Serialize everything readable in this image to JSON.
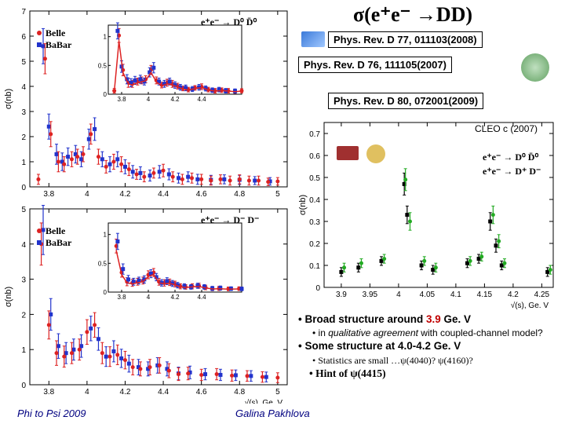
{
  "title": "σ(e⁺e⁻ →DD)",
  "refs": {
    "r1": "Phys. Rev. D 77, 011103(2008)",
    "r2": "Phys. Rev. D 76, 111105(2007)",
    "r3": "Phys. Rev. D 80, 072001(2009)"
  },
  "footer": {
    "left": "Phi to Psi 2009",
    "center": "Galina Pakhlova"
  },
  "bullets": {
    "l1a": "• Broad structure around ",
    "l1b": "3.9",
    "l1c": " Ge. V",
    "l2a": "• in ",
    "l2b": "qualitative agreement",
    "l2c": " with coupled-channel model?",
    "l3": "• Some structure at 4.0-4.2 Ge. V",
    "l4": "• Statistics are small …ψ(4040)? ψ(4160)?",
    "l5": "• Hint of ψ(4415)"
  },
  "chart_main_top": {
    "type": "scatter-errorbar",
    "xlim": [
      3.7,
      5.05
    ],
    "ylim": [
      0,
      7
    ],
    "yticks": [
      0,
      1,
      2,
      3,
      4,
      5,
      6,
      7
    ],
    "xticks": [
      3.8,
      4,
      4.2,
      4.4,
      4.6,
      4.8,
      5
    ],
    "ylabel": "σ(nb)",
    "xlabel": "",
    "legend": [
      "Belle",
      "BaBar"
    ],
    "reaction": "e⁺e⁻ → D⁰ D̄⁰",
    "series_red": {
      "color": "#dd2222",
      "points": [
        [
          3.745,
          0.3,
          0.2
        ],
        [
          3.78,
          5.1,
          0.6
        ],
        [
          3.81,
          2.1,
          0.5
        ],
        [
          3.85,
          1.0,
          0.4
        ],
        [
          3.88,
          0.9,
          0.3
        ],
        [
          3.92,
          1.1,
          0.3
        ],
        [
          3.95,
          1.2,
          0.3
        ],
        [
          3.98,
          1.3,
          0.3
        ],
        [
          4.02,
          2.1,
          0.4
        ],
        [
          4.06,
          1.2,
          0.3
        ],
        [
          4.1,
          0.8,
          0.25
        ],
        [
          4.14,
          1.0,
          0.3
        ],
        [
          4.18,
          0.9,
          0.3
        ],
        [
          4.22,
          0.7,
          0.25
        ],
        [
          4.26,
          0.5,
          0.2
        ],
        [
          4.3,
          0.4,
          0.2
        ],
        [
          4.35,
          0.55,
          0.2
        ],
        [
          4.4,
          0.65,
          0.25
        ],
        [
          4.45,
          0.4,
          0.2
        ],
        [
          4.5,
          0.3,
          0.2
        ],
        [
          4.55,
          0.35,
          0.2
        ],
        [
          4.6,
          0.3,
          0.2
        ],
        [
          4.65,
          0.25,
          0.18
        ],
        [
          4.7,
          0.3,
          0.18
        ],
        [
          4.75,
          0.25,
          0.18
        ],
        [
          4.8,
          0.3,
          0.18
        ],
        [
          4.85,
          0.25,
          0.18
        ],
        [
          4.9,
          0.25,
          0.18
        ],
        [
          4.95,
          0.2,
          0.15
        ],
        [
          5.0,
          0.22,
          0.15
        ]
      ]
    },
    "series_blue": {
      "color": "#2233cc",
      "points": [
        [
          3.77,
          5.6,
          0.7
        ],
        [
          3.8,
          2.4,
          0.5
        ],
        [
          3.84,
          1.3,
          0.4
        ],
        [
          3.87,
          1.0,
          0.35
        ],
        [
          3.9,
          1.2,
          0.35
        ],
        [
          3.94,
          1.3,
          0.35
        ],
        [
          3.97,
          1.1,
          0.3
        ],
        [
          4.01,
          1.9,
          0.4
        ],
        [
          4.04,
          2.3,
          0.45
        ],
        [
          4.08,
          1.1,
          0.3
        ],
        [
          4.12,
          0.9,
          0.3
        ],
        [
          4.16,
          1.1,
          0.3
        ],
        [
          4.2,
          0.8,
          0.28
        ],
        [
          4.24,
          0.6,
          0.25
        ],
        [
          4.28,
          0.55,
          0.25
        ],
        [
          4.33,
          0.45,
          0.22
        ],
        [
          4.38,
          0.6,
          0.25
        ],
        [
          4.43,
          0.5,
          0.22
        ],
        [
          4.48,
          0.35,
          0.2
        ],
        [
          4.53,
          0.4,
          0.2
        ],
        [
          4.58,
          0.3,
          0.2
        ],
        [
          4.65,
          0.28,
          0.18
        ],
        [
          4.72,
          0.3,
          0.18
        ],
        [
          4.8,
          0.28,
          0.18
        ],
        [
          4.88,
          0.25,
          0.16
        ],
        [
          4.96,
          0.22,
          0.15
        ]
      ]
    },
    "inset": {
      "xlim": [
        3.7,
        4.7
      ],
      "ylim": [
        0,
        1.2
      ],
      "yticks": [
        0,
        0.5,
        1
      ],
      "xticks": [
        3.8,
        4,
        4.2,
        4.4
      ],
      "curve_color": "#dd2222"
    }
  },
  "chart_main_bot": {
    "type": "scatter-errorbar",
    "xlim": [
      3.7,
      5.05
    ],
    "ylim": [
      0,
      5
    ],
    "yticks": [
      0,
      1,
      2,
      3,
      4,
      5
    ],
    "xticks": [
      3.8,
      4,
      4.2,
      4.4,
      4.6,
      4.8,
      5
    ],
    "ylabel": "σ(nb)",
    "xlabel": "√(s), Ge. V",
    "legend": [
      "Belle",
      "BaBar"
    ],
    "reaction": "e⁺e⁻ → D⁻ D⁻",
    "series_red": {
      "color": "#dd2222",
      "points": [
        [
          3.76,
          4.0,
          0.6
        ],
        [
          3.8,
          1.7,
          0.4
        ],
        [
          3.84,
          0.9,
          0.35
        ],
        [
          3.88,
          0.8,
          0.3
        ],
        [
          3.92,
          0.9,
          0.3
        ],
        [
          3.96,
          1.0,
          0.3
        ],
        [
          4.0,
          1.5,
          0.35
        ],
        [
          4.04,
          1.7,
          0.35
        ],
        [
          4.08,
          0.9,
          0.3
        ],
        [
          4.12,
          0.8,
          0.28
        ],
        [
          4.16,
          0.85,
          0.28
        ],
        [
          4.2,
          0.7,
          0.25
        ],
        [
          4.24,
          0.5,
          0.22
        ],
        [
          4.28,
          0.45,
          0.2
        ],
        [
          4.33,
          0.5,
          0.22
        ],
        [
          4.38,
          0.55,
          0.22
        ],
        [
          4.43,
          0.4,
          0.2
        ],
        [
          4.48,
          0.3,
          0.18
        ],
        [
          4.53,
          0.32,
          0.18
        ],
        [
          4.6,
          0.28,
          0.16
        ],
        [
          4.68,
          0.3,
          0.16
        ],
        [
          4.76,
          0.26,
          0.16
        ],
        [
          4.84,
          0.25,
          0.15
        ],
        [
          4.92,
          0.22,
          0.15
        ],
        [
          5.0,
          0.2,
          0.14
        ]
      ]
    },
    "series_blue": {
      "color": "#2233cc",
      "points": [
        [
          3.77,
          4.4,
          0.7
        ],
        [
          3.81,
          2.0,
          0.45
        ],
        [
          3.85,
          1.1,
          0.35
        ],
        [
          3.89,
          0.9,
          0.3
        ],
        [
          3.93,
          1.0,
          0.3
        ],
        [
          3.97,
          1.1,
          0.32
        ],
        [
          4.02,
          1.6,
          0.35
        ],
        [
          4.06,
          1.3,
          0.32
        ],
        [
          4.1,
          0.8,
          0.28
        ],
        [
          4.14,
          0.95,
          0.3
        ],
        [
          4.18,
          0.75,
          0.26
        ],
        [
          4.22,
          0.6,
          0.24
        ],
        [
          4.27,
          0.5,
          0.22
        ],
        [
          4.32,
          0.45,
          0.2
        ],
        [
          4.37,
          0.55,
          0.22
        ],
        [
          4.42,
          0.45,
          0.2
        ],
        [
          4.48,
          0.32,
          0.18
        ],
        [
          4.54,
          0.35,
          0.18
        ],
        [
          4.62,
          0.3,
          0.16
        ],
        [
          4.7,
          0.28,
          0.16
        ],
        [
          4.78,
          0.27,
          0.15
        ],
        [
          4.86,
          0.25,
          0.15
        ],
        [
          4.94,
          0.22,
          0.14
        ]
      ]
    },
    "inset": {
      "xlim": [
        3.7,
        4.7
      ],
      "ylim": [
        0,
        1.2
      ],
      "yticks": [
        0,
        0.5,
        1
      ],
      "xticks": [
        3.8,
        4,
        4.2,
        4.4
      ],
      "curve_color": "#dd2222"
    }
  },
  "chart_right": {
    "type": "scatter-errorbar",
    "xlim": [
      3.87,
      4.27
    ],
    "ylim": [
      0,
      0.75
    ],
    "yticks": [
      0,
      0.1,
      0.2,
      0.3,
      0.4,
      0.5,
      0.6,
      0.7
    ],
    "xticks": [
      3.9,
      3.95,
      4,
      4.05,
      4.1,
      4.15,
      4.2,
      4.25
    ],
    "ylabel": "σ(nb)",
    "xlabel": "√(s), Ge. V",
    "title": "CLEO c (2007)",
    "legend": [
      "e⁺e⁻ → D⁰ D̄⁰",
      "e⁺e⁻ → D⁺ D⁻"
    ],
    "legend_colors": [
      "#000000",
      "#dd2222"
    ],
    "series_black": {
      "color": "#000",
      "points": [
        [
          3.9,
          0.07,
          0.02
        ],
        [
          3.93,
          0.09,
          0.02
        ],
        [
          3.97,
          0.12,
          0.02
        ],
        [
          4.01,
          0.47,
          0.05
        ],
        [
          4.015,
          0.33,
          0.04
        ],
        [
          4.04,
          0.1,
          0.02
        ],
        [
          4.06,
          0.08,
          0.02
        ],
        [
          4.12,
          0.11,
          0.02
        ],
        [
          4.14,
          0.13,
          0.02
        ],
        [
          4.16,
          0.3,
          0.04
        ],
        [
          4.17,
          0.19,
          0.03
        ],
        [
          4.18,
          0.1,
          0.02
        ],
        [
          4.26,
          0.07,
          0.02
        ]
      ]
    },
    "series_green": {
      "color": "#22aa22",
      "points": [
        [
          3.905,
          0.09,
          0.02
        ],
        [
          3.935,
          0.11,
          0.02
        ],
        [
          3.975,
          0.13,
          0.02
        ],
        [
          4.012,
          0.49,
          0.05
        ],
        [
          4.02,
          0.3,
          0.04
        ],
        [
          4.045,
          0.12,
          0.02
        ],
        [
          4.065,
          0.09,
          0.02
        ],
        [
          4.125,
          0.12,
          0.02
        ],
        [
          4.145,
          0.14,
          0.02
        ],
        [
          4.165,
          0.33,
          0.04
        ],
        [
          4.175,
          0.21,
          0.03
        ],
        [
          4.185,
          0.11,
          0.02
        ],
        [
          4.265,
          0.08,
          0.02
        ]
      ]
    }
  }
}
